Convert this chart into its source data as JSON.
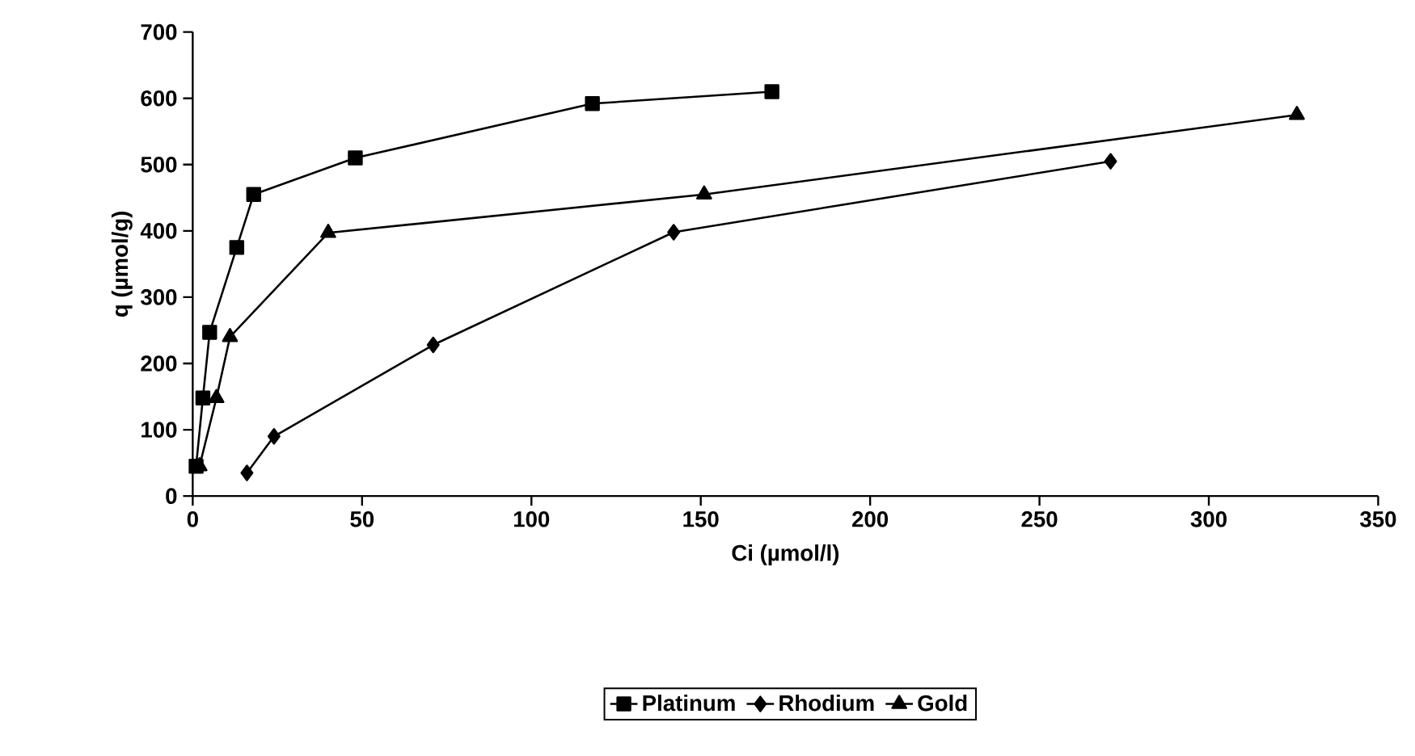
{
  "chart_data": {
    "type": "line",
    "xlabel": "Ci (µmol/l)",
    "ylabel": "q (µmol/g)",
    "xlim": [
      0,
      350
    ],
    "xticks": [
      0,
      50,
      100,
      150,
      200,
      250,
      300,
      350
    ],
    "ylim": [
      0,
      700
    ],
    "yticks": [
      0,
      100,
      200,
      300,
      400,
      500,
      600,
      700
    ],
    "grid": false,
    "legend": "bottom",
    "line_style": "solid",
    "series": [
      {
        "name": "Platinum",
        "color": "#000000",
        "marker": "square",
        "x": [
          1,
          3,
          5,
          13,
          18,
          48,
          118,
          171
        ],
        "values": [
          45,
          148,
          247,
          375,
          455,
          510,
          592,
          610
        ]
      },
      {
        "name": "Rhodium",
        "color": "#000000",
        "marker": "diamond",
        "x": [
          16,
          24,
          71,
          142,
          271
        ],
        "values": [
          35,
          90,
          228,
          398,
          505
        ]
      },
      {
        "name": "Gold",
        "color": "#000000",
        "marker": "triangle",
        "x": [
          2,
          7,
          11,
          40,
          151,
          326
        ],
        "values": [
          45,
          148,
          240,
          397,
          455,
          575
        ]
      }
    ]
  }
}
